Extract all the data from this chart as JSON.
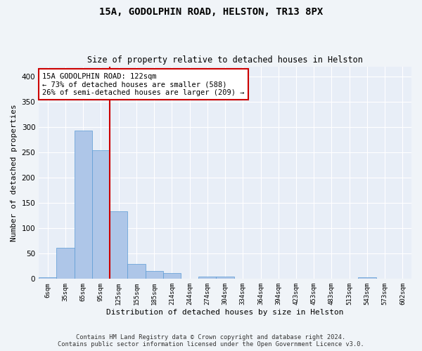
{
  "title_line1": "15A, GODOLPHIN ROAD, HELSTON, TR13 8PX",
  "title_line2": "Size of property relative to detached houses in Helston",
  "xlabel": "Distribution of detached houses by size in Helston",
  "ylabel": "Number of detached properties",
  "footer_line1": "Contains HM Land Registry data © Crown copyright and database right 2024.",
  "footer_line2": "Contains public sector information licensed under the Open Government Licence v3.0.",
  "bin_labels": [
    "6sqm",
    "35sqm",
    "65sqm",
    "95sqm",
    "125sqm",
    "155sqm",
    "185sqm",
    "214sqm",
    "244sqm",
    "274sqm",
    "304sqm",
    "334sqm",
    "364sqm",
    "394sqm",
    "423sqm",
    "453sqm",
    "483sqm",
    "513sqm",
    "543sqm",
    "573sqm",
    "602sqm"
  ],
  "bar_values": [
    3,
    62,
    293,
    254,
    133,
    29,
    16,
    11,
    0,
    5,
    5,
    0,
    0,
    0,
    0,
    0,
    0,
    0,
    3,
    0,
    0
  ],
  "bar_color": "#aec6e8",
  "bar_edge_color": "#5b9bd5",
  "background_color": "#e8eef7",
  "grid_color": "#ffffff",
  "fig_background": "#f0f4f8",
  "annotation_text": "15A GODOLPHIN ROAD: 122sqm\n← 73% of detached houses are smaller (588)\n26% of semi-detached houses are larger (209) →",
  "annotation_box_color": "#ffffff",
  "annotation_box_edge": "#cc0000",
  "vline_color": "#cc0000",
  "ylim": [
    0,
    420
  ],
  "yticks": [
    0,
    50,
    100,
    150,
    200,
    250,
    300,
    350,
    400
  ],
  "vline_x": 3.5
}
